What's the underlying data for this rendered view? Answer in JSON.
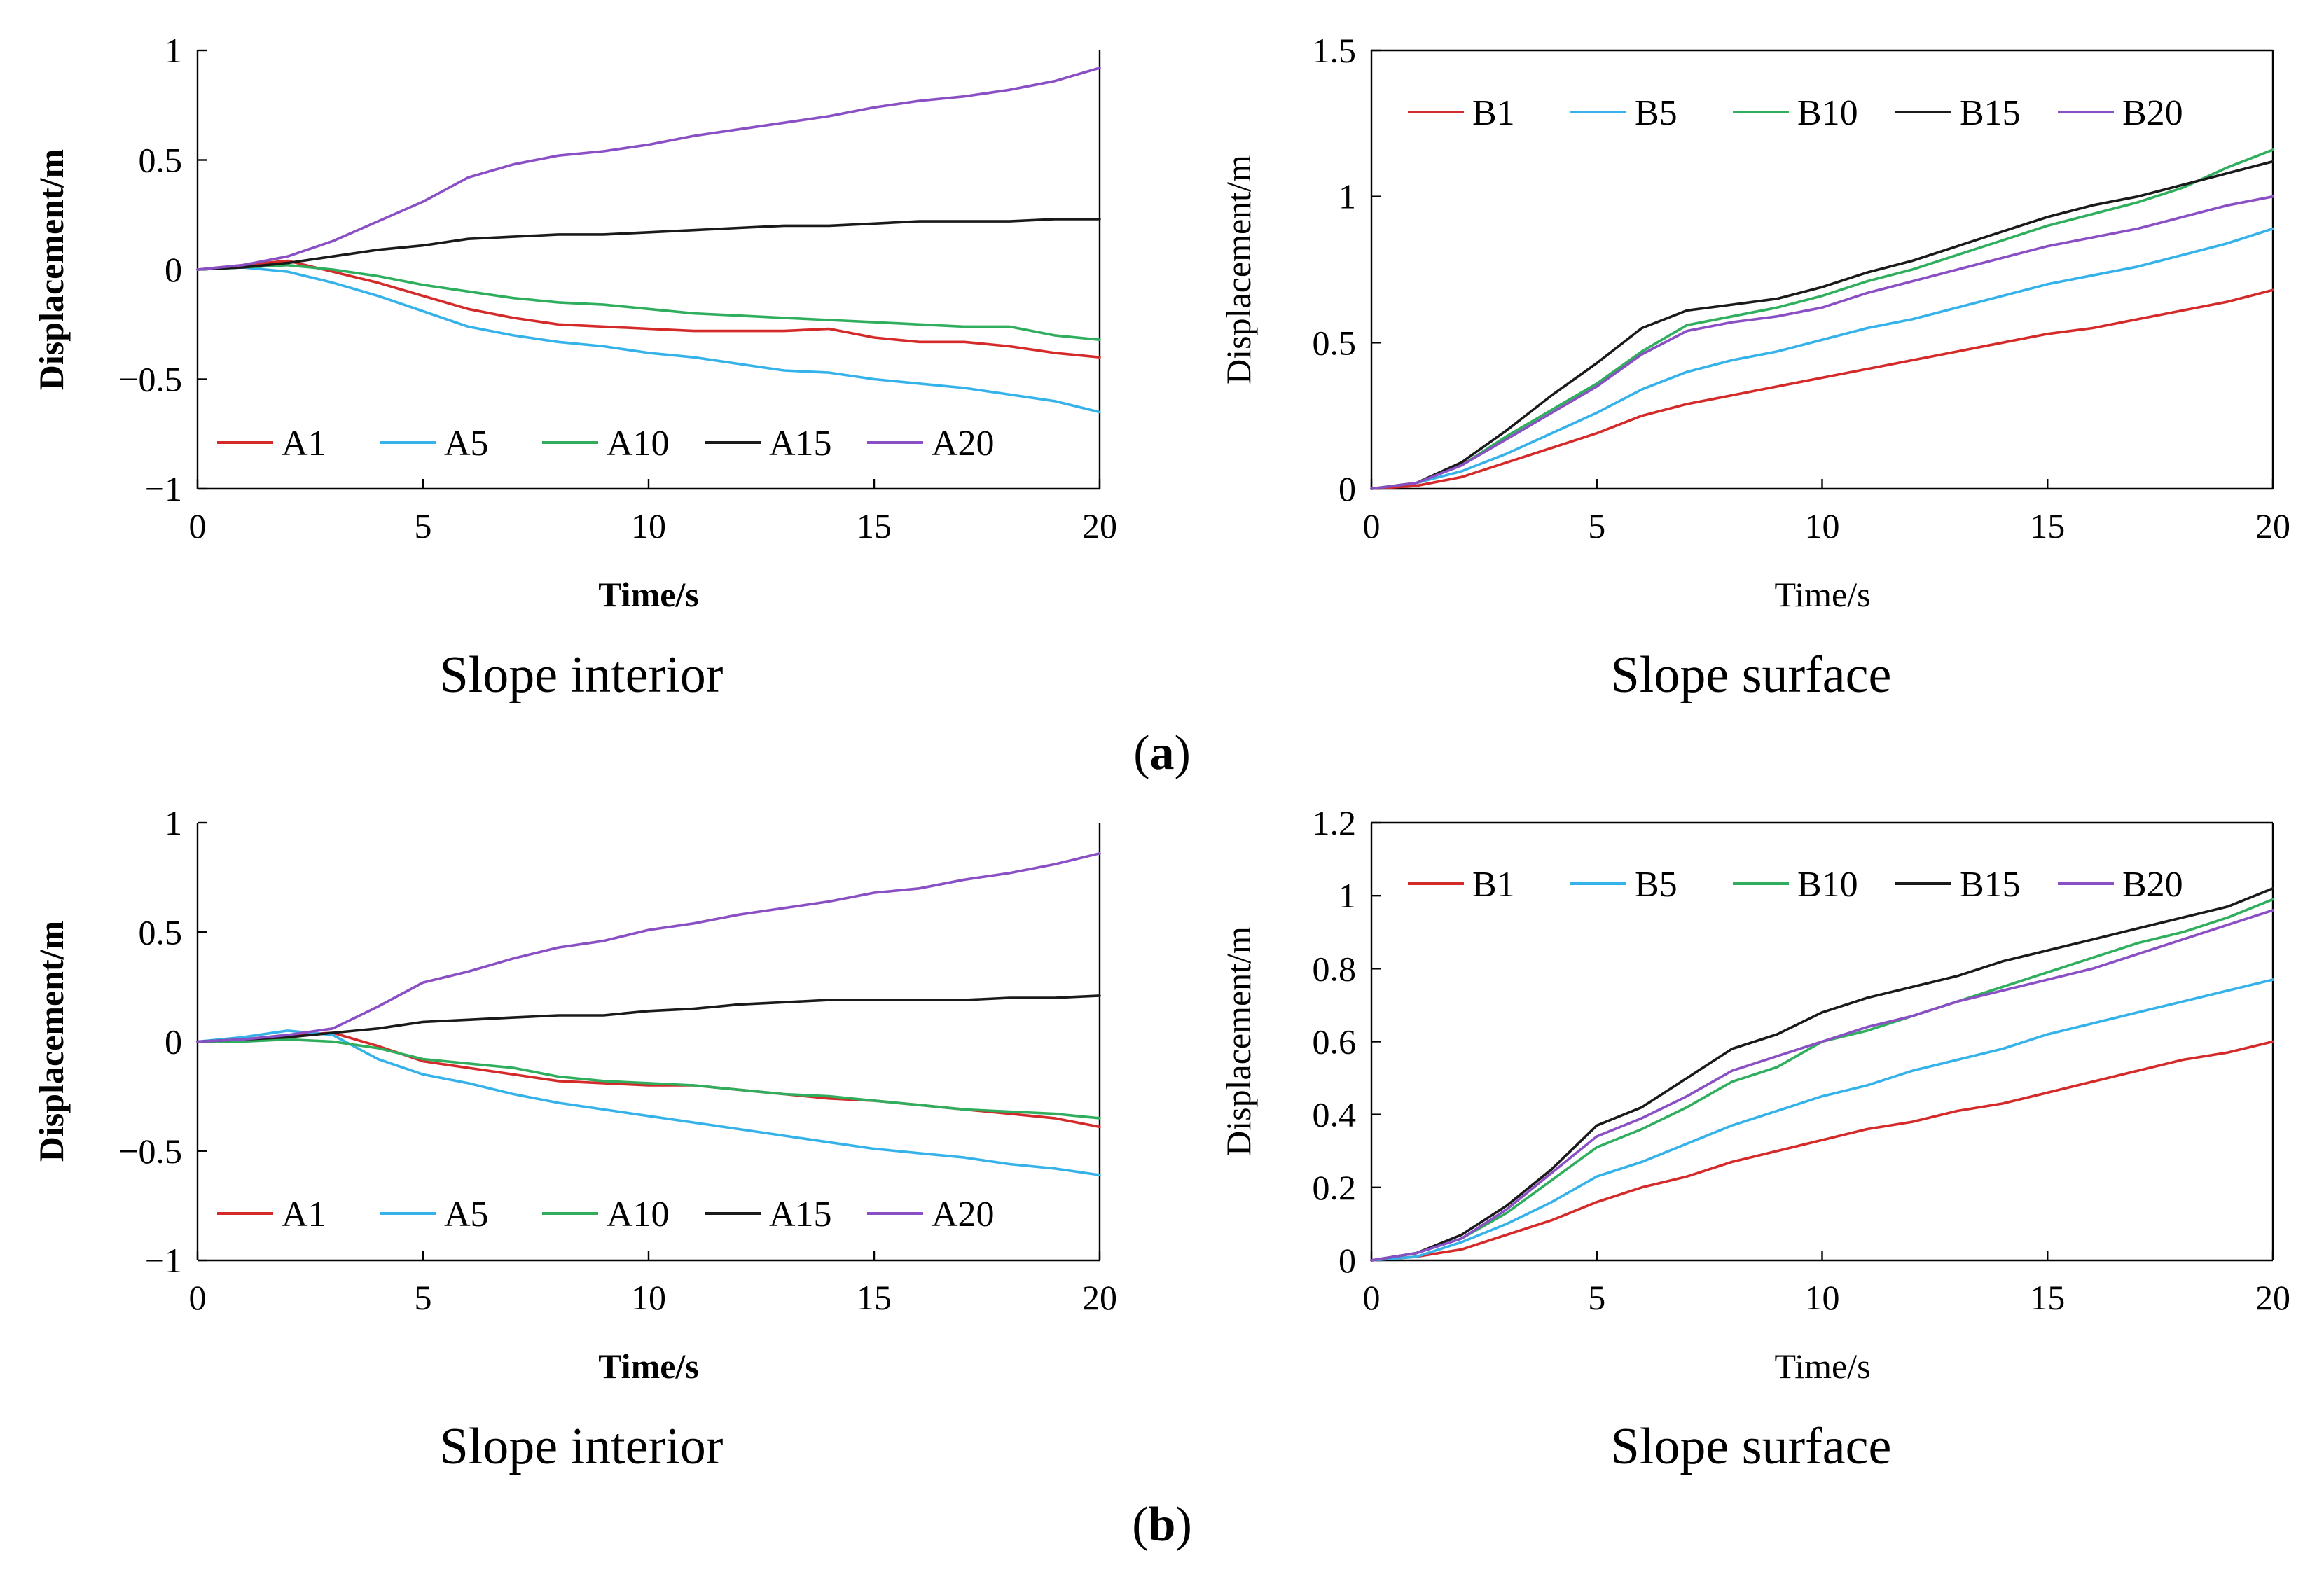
{
  "panel_labels": [
    {
      "open": "(",
      "letter": "a",
      "close": ")"
    },
    {
      "open": "(",
      "letter": "b",
      "close": ")"
    }
  ],
  "colors": {
    "red": "#d42a2a",
    "cyan": "#35b2ea",
    "green": "#2fae5e",
    "black": "#1a1a1a",
    "purple": "#8a4fc4"
  },
  "chart_data": [
    {
      "type": "line",
      "caption": "Slope interior",
      "xlabel": "Time/s",
      "ylabel": "Displacement/m",
      "xlim": [
        0,
        20
      ],
      "ylim": [
        -1,
        1
      ],
      "xticks": [
        0,
        5,
        10,
        15,
        20
      ],
      "yticks": [
        -1,
        -0.5,
        0,
        0.5,
        1
      ],
      "ytick_labels": [
        "−1",
        "−0.5",
        "0",
        "0.5",
        "1"
      ],
      "legend_position": "bottom-left",
      "grid": false,
      "series": [
        {
          "name": "A1",
          "color": "#d42a2a",
          "x": [
            0,
            1,
            2,
            3,
            4,
            5,
            6,
            7,
            8,
            9,
            10,
            11,
            12,
            13,
            14,
            15,
            16,
            17,
            18,
            19,
            20
          ],
          "y": [
            0,
            0.02,
            0.04,
            -0.01,
            -0.06,
            -0.12,
            -0.18,
            -0.22,
            -0.25,
            -0.26,
            -0.27,
            -0.28,
            -0.28,
            -0.28,
            -0.27,
            -0.31,
            -0.33,
            -0.33,
            -0.35,
            -0.38,
            -0.4
          ]
        },
        {
          "name": "A5",
          "color": "#35b2ea",
          "x": [
            0,
            1,
            2,
            3,
            4,
            5,
            6,
            7,
            8,
            9,
            10,
            11,
            12,
            13,
            14,
            15,
            16,
            17,
            18,
            19,
            20
          ],
          "y": [
            0,
            0.01,
            -0.01,
            -0.06,
            -0.12,
            -0.19,
            -0.26,
            -0.3,
            -0.33,
            -0.35,
            -0.38,
            -0.4,
            -0.43,
            -0.46,
            -0.47,
            -0.5,
            -0.52,
            -0.54,
            -0.57,
            -0.6,
            -0.65
          ]
        },
        {
          "name": "A10",
          "color": "#2fae5e",
          "x": [
            0,
            1,
            2,
            3,
            4,
            5,
            6,
            7,
            8,
            9,
            10,
            11,
            12,
            13,
            14,
            15,
            16,
            17,
            18,
            19,
            20
          ],
          "y": [
            0,
            0.01,
            0.02,
            0,
            -0.03,
            -0.07,
            -0.1,
            -0.13,
            -0.15,
            -0.16,
            -0.18,
            -0.2,
            -0.21,
            -0.22,
            -0.23,
            -0.24,
            -0.25,
            -0.26,
            -0.26,
            -0.3,
            -0.32
          ]
        },
        {
          "name": "A15",
          "color": "#1a1a1a",
          "x": [
            0,
            1,
            2,
            3,
            4,
            5,
            6,
            7,
            8,
            9,
            10,
            11,
            12,
            13,
            14,
            15,
            16,
            17,
            18,
            19,
            20
          ],
          "y": [
            0,
            0.01,
            0.03,
            0.06,
            0.09,
            0.11,
            0.14,
            0.15,
            0.16,
            0.16,
            0.17,
            0.18,
            0.19,
            0.2,
            0.2,
            0.21,
            0.22,
            0.22,
            0.22,
            0.23,
            0.23
          ]
        },
        {
          "name": "A20",
          "color": "#8a4fc4",
          "x": [
            0,
            1,
            2,
            3,
            4,
            5,
            6,
            7,
            8,
            9,
            10,
            11,
            12,
            13,
            14,
            15,
            16,
            17,
            18,
            19,
            20
          ],
          "y": [
            0,
            0.02,
            0.06,
            0.13,
            0.22,
            0.31,
            0.42,
            0.48,
            0.52,
            0.54,
            0.57,
            0.61,
            0.64,
            0.67,
            0.7,
            0.74,
            0.77,
            0.79,
            0.82,
            0.86,
            0.92
          ]
        }
      ]
    },
    {
      "type": "line",
      "caption": "Slope surface",
      "xlabel": "Time/s",
      "ylabel": "Displacement/m",
      "xlim": [
        0,
        20
      ],
      "ylim": [
        0,
        1.5
      ],
      "xticks": [
        0,
        5,
        10,
        15,
        20
      ],
      "yticks": [
        0,
        0.5,
        1,
        1.5
      ],
      "ytick_labels": [
        "0",
        "0.5",
        "1",
        "1.5"
      ],
      "legend_position": "top-left",
      "grid": false,
      "series": [
        {
          "name": "B1",
          "color": "#d42a2a",
          "x": [
            0,
            1,
            2,
            3,
            4,
            5,
            6,
            7,
            8,
            9,
            10,
            11,
            12,
            13,
            14,
            15,
            16,
            17,
            18,
            19,
            20
          ],
          "y": [
            0,
            0.01,
            0.04,
            0.09,
            0.14,
            0.19,
            0.25,
            0.29,
            0.32,
            0.35,
            0.38,
            0.41,
            0.44,
            0.47,
            0.5,
            0.53,
            0.55,
            0.58,
            0.61,
            0.64,
            0.68
          ]
        },
        {
          "name": "B5",
          "color": "#35b2ea",
          "x": [
            0,
            1,
            2,
            3,
            4,
            5,
            6,
            7,
            8,
            9,
            10,
            11,
            12,
            13,
            14,
            15,
            16,
            17,
            18,
            19,
            20
          ],
          "y": [
            0,
            0.02,
            0.06,
            0.12,
            0.19,
            0.26,
            0.34,
            0.4,
            0.44,
            0.47,
            0.51,
            0.55,
            0.58,
            0.62,
            0.66,
            0.7,
            0.73,
            0.76,
            0.8,
            0.84,
            0.89
          ]
        },
        {
          "name": "B10",
          "color": "#2fae5e",
          "x": [
            0,
            1,
            2,
            3,
            4,
            5,
            6,
            7,
            8,
            9,
            10,
            11,
            12,
            13,
            14,
            15,
            16,
            17,
            18,
            19,
            20
          ],
          "y": [
            0,
            0.02,
            0.08,
            0.18,
            0.27,
            0.36,
            0.47,
            0.56,
            0.59,
            0.62,
            0.66,
            0.71,
            0.75,
            0.8,
            0.85,
            0.9,
            0.94,
            0.98,
            1.03,
            1.1,
            1.16
          ]
        },
        {
          "name": "B15",
          "color": "#1a1a1a",
          "x": [
            0,
            1,
            2,
            3,
            4,
            5,
            6,
            7,
            8,
            9,
            10,
            11,
            12,
            13,
            14,
            15,
            16,
            17,
            18,
            19,
            20
          ],
          "y": [
            0,
            0.02,
            0.09,
            0.2,
            0.32,
            0.43,
            0.55,
            0.61,
            0.63,
            0.65,
            0.69,
            0.74,
            0.78,
            0.83,
            0.88,
            0.93,
            0.97,
            1.0,
            1.04,
            1.08,
            1.12
          ]
        },
        {
          "name": "B20",
          "color": "#8a4fc4",
          "x": [
            0,
            1,
            2,
            3,
            4,
            5,
            6,
            7,
            8,
            9,
            10,
            11,
            12,
            13,
            14,
            15,
            16,
            17,
            18,
            19,
            20
          ],
          "y": [
            0,
            0.02,
            0.08,
            0.17,
            0.26,
            0.35,
            0.46,
            0.54,
            0.57,
            0.59,
            0.62,
            0.67,
            0.71,
            0.75,
            0.79,
            0.83,
            0.86,
            0.89,
            0.93,
            0.97,
            1.0
          ]
        }
      ]
    },
    {
      "type": "line",
      "caption": "Slope interior",
      "xlabel": "Time/s",
      "ylabel": "Displacement/m",
      "xlim": [
        0,
        20
      ],
      "ylim": [
        -1,
        1
      ],
      "xticks": [
        0,
        5,
        10,
        15,
        20
      ],
      "yticks": [
        -1,
        -0.5,
        0,
        0.5,
        1
      ],
      "ytick_labels": [
        "−1",
        "−0.5",
        "0",
        "0.5",
        "1"
      ],
      "legend_position": "bottom-left",
      "grid": false,
      "series": [
        {
          "name": "A1",
          "color": "#d42a2a",
          "x": [
            0,
            1,
            2,
            3,
            4,
            5,
            6,
            7,
            8,
            9,
            10,
            11,
            12,
            13,
            14,
            15,
            16,
            17,
            18,
            19,
            20
          ],
          "y": [
            0,
            0.01,
            0.03,
            0.04,
            -0.02,
            -0.09,
            -0.12,
            -0.15,
            -0.18,
            -0.19,
            -0.2,
            -0.2,
            -0.22,
            -0.24,
            -0.26,
            -0.27,
            -0.29,
            -0.31,
            -0.33,
            -0.35,
            -0.39
          ]
        },
        {
          "name": "A5",
          "color": "#35b2ea",
          "x": [
            0,
            1,
            2,
            3,
            4,
            5,
            6,
            7,
            8,
            9,
            10,
            11,
            12,
            13,
            14,
            15,
            16,
            17,
            18,
            19,
            20
          ],
          "y": [
            0,
            0.02,
            0.05,
            0.03,
            -0.08,
            -0.15,
            -0.19,
            -0.24,
            -0.28,
            -0.31,
            -0.34,
            -0.37,
            -0.4,
            -0.43,
            -0.46,
            -0.49,
            -0.51,
            -0.53,
            -0.56,
            -0.58,
            -0.61
          ]
        },
        {
          "name": "A10",
          "color": "#2fae5e",
          "x": [
            0,
            1,
            2,
            3,
            4,
            5,
            6,
            7,
            8,
            9,
            10,
            11,
            12,
            13,
            14,
            15,
            16,
            17,
            18,
            19,
            20
          ],
          "y": [
            0,
            0,
            0.01,
            0,
            -0.03,
            -0.08,
            -0.1,
            -0.12,
            -0.16,
            -0.18,
            -0.19,
            -0.2,
            -0.22,
            -0.24,
            -0.25,
            -0.27,
            -0.29,
            -0.31,
            -0.32,
            -0.33,
            -0.35
          ]
        },
        {
          "name": "A15",
          "color": "#1a1a1a",
          "x": [
            0,
            1,
            2,
            3,
            4,
            5,
            6,
            7,
            8,
            9,
            10,
            11,
            12,
            13,
            14,
            15,
            16,
            17,
            18,
            19,
            20
          ],
          "y": [
            0,
            0.01,
            0.02,
            0.04,
            0.06,
            0.09,
            0.1,
            0.11,
            0.12,
            0.12,
            0.14,
            0.15,
            0.17,
            0.18,
            0.19,
            0.19,
            0.19,
            0.19,
            0.2,
            0.2,
            0.21
          ]
        },
        {
          "name": "A20",
          "color": "#8a4fc4",
          "x": [
            0,
            1,
            2,
            3,
            4,
            5,
            6,
            7,
            8,
            9,
            10,
            11,
            12,
            13,
            14,
            15,
            16,
            17,
            18,
            19,
            20
          ],
          "y": [
            0,
            0.01,
            0.03,
            0.06,
            0.16,
            0.27,
            0.32,
            0.38,
            0.43,
            0.46,
            0.51,
            0.54,
            0.58,
            0.61,
            0.64,
            0.68,
            0.7,
            0.74,
            0.77,
            0.81,
            0.86
          ]
        }
      ]
    },
    {
      "type": "line",
      "caption": "Slope surface",
      "xlabel": "Time/s",
      "ylabel": "Displacement/m",
      "xlim": [
        0,
        20
      ],
      "ylim": [
        0,
        1.2
      ],
      "xticks": [
        0,
        5,
        10,
        15,
        20
      ],
      "yticks": [
        0,
        0.2,
        0.4,
        0.6,
        0.8,
        1,
        1.2
      ],
      "ytick_labels": [
        "0",
        "0.2",
        "0.4",
        "0.6",
        "0.8",
        "1",
        "1.2"
      ],
      "legend_position": "top-left",
      "grid": false,
      "series": [
        {
          "name": "B1",
          "color": "#d42a2a",
          "x": [
            0,
            1,
            2,
            3,
            4,
            5,
            6,
            7,
            8,
            9,
            10,
            11,
            12,
            13,
            14,
            15,
            16,
            17,
            18,
            19,
            20
          ],
          "y": [
            0,
            0.01,
            0.03,
            0.07,
            0.11,
            0.16,
            0.2,
            0.23,
            0.27,
            0.3,
            0.33,
            0.36,
            0.38,
            0.41,
            0.43,
            0.46,
            0.49,
            0.52,
            0.55,
            0.57,
            0.6
          ]
        },
        {
          "name": "B5",
          "color": "#35b2ea",
          "x": [
            0,
            1,
            2,
            3,
            4,
            5,
            6,
            7,
            8,
            9,
            10,
            11,
            12,
            13,
            14,
            15,
            16,
            17,
            18,
            19,
            20
          ],
          "y": [
            0,
            0.01,
            0.05,
            0.1,
            0.16,
            0.23,
            0.27,
            0.32,
            0.37,
            0.41,
            0.45,
            0.48,
            0.52,
            0.55,
            0.58,
            0.62,
            0.65,
            0.68,
            0.71,
            0.74,
            0.77
          ]
        },
        {
          "name": "B10",
          "color": "#2fae5e",
          "x": [
            0,
            1,
            2,
            3,
            4,
            5,
            6,
            7,
            8,
            9,
            10,
            11,
            12,
            13,
            14,
            15,
            16,
            17,
            18,
            19,
            20
          ],
          "y": [
            0,
            0.02,
            0.06,
            0.13,
            0.22,
            0.31,
            0.36,
            0.42,
            0.49,
            0.53,
            0.6,
            0.63,
            0.67,
            0.71,
            0.75,
            0.79,
            0.83,
            0.87,
            0.9,
            0.94,
            0.99
          ]
        },
        {
          "name": "B15",
          "color": "#1a1a1a",
          "x": [
            0,
            1,
            2,
            3,
            4,
            5,
            6,
            7,
            8,
            9,
            10,
            11,
            12,
            13,
            14,
            15,
            16,
            17,
            18,
            19,
            20
          ],
          "y": [
            0,
            0.02,
            0.07,
            0.15,
            0.25,
            0.37,
            0.42,
            0.5,
            0.58,
            0.62,
            0.68,
            0.72,
            0.75,
            0.78,
            0.82,
            0.85,
            0.88,
            0.91,
            0.94,
            0.97,
            1.02
          ]
        },
        {
          "name": "B20",
          "color": "#8a4fc4",
          "x": [
            0,
            1,
            2,
            3,
            4,
            5,
            6,
            7,
            8,
            9,
            10,
            11,
            12,
            13,
            14,
            15,
            16,
            17,
            18,
            19,
            20
          ],
          "y": [
            0,
            0.02,
            0.06,
            0.14,
            0.24,
            0.34,
            0.39,
            0.45,
            0.52,
            0.56,
            0.6,
            0.64,
            0.67,
            0.71,
            0.74,
            0.77,
            0.8,
            0.84,
            0.88,
            0.92,
            0.96
          ]
        }
      ]
    }
  ]
}
